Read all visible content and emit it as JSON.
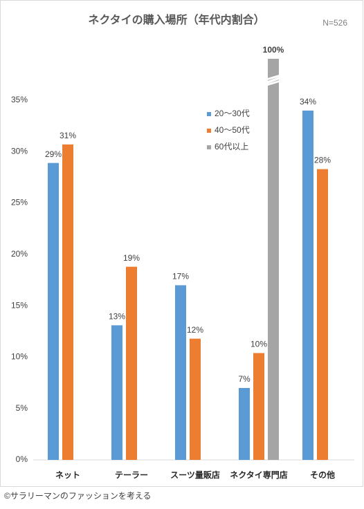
{
  "chart_data": {
    "type": "bar",
    "title": "ネクタイの購入場所（年代内割合）",
    "note": "N=526",
    "source": "©サラリーマンのファッションを考える",
    "categories": [
      "ネット",
      "テーラー",
      "スーツ量販店",
      "ネクタイ専門店",
      "その他"
    ],
    "series": [
      {
        "name": "20～30代",
        "color": "#5b9bd5",
        "values": [
          28.9,
          13.1,
          17.0,
          7.0,
          34.0
        ],
        "value_labels": [
          "29%",
          "13%",
          "17%",
          "7%",
          "34%"
        ]
      },
      {
        "name": "40～50代",
        "color": "#ed7d31",
        "values": [
          30.7,
          18.8,
          11.8,
          10.4,
          28.3
        ],
        "value_labels": [
          "31%",
          "19%",
          "12%",
          "10%",
          "28%"
        ]
      },
      {
        "name": "60代以上",
        "color": "#a5a5a5",
        "values": [
          null,
          null,
          null,
          100,
          null
        ],
        "value_labels": [
          null,
          null,
          null,
          "100%",
          null
        ]
      }
    ],
    "ylim": [
      0,
      35
    ],
    "yticks": [
      {
        "value": 0,
        "label": "0%"
      },
      {
        "value": 5,
        "label": "5%"
      },
      {
        "value": 10,
        "label": "10%"
      },
      {
        "value": 15,
        "label": "15%"
      },
      {
        "value": 20,
        "label": "20%"
      },
      {
        "value": 25,
        "label": "25%"
      },
      {
        "value": 30,
        "label": "30%"
      },
      {
        "value": 35,
        "label": "35%"
      }
    ],
    "grid": false,
    "legend": "top-right"
  }
}
